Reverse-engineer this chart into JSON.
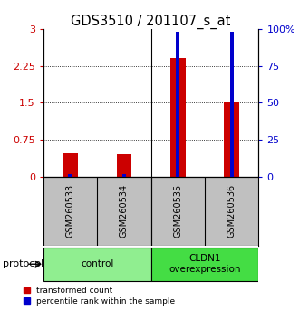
{
  "title": "GDS3510 / 201107_s_at",
  "samples": [
    "GSM260533",
    "GSM260534",
    "GSM260535",
    "GSM260536"
  ],
  "red_values": [
    0.48,
    0.46,
    2.4,
    1.5
  ],
  "blue_values": [
    2.0,
    2.0,
    98.0,
    98.0
  ],
  "ylim_left": [
    0,
    3
  ],
  "ylim_right": [
    0,
    100
  ],
  "yticks_left": [
    0,
    0.75,
    1.5,
    2.25,
    3
  ],
  "yticks_right": [
    0,
    25,
    50,
    75,
    100
  ],
  "ytick_labels_left": [
    "0",
    "0.75",
    "1.5",
    "2.25",
    "3"
  ],
  "ytick_labels_right": [
    "0",
    "25",
    "50",
    "75",
    "100%"
  ],
  "hlines": [
    0.75,
    1.5,
    2.25
  ],
  "groups": [
    {
      "label": "control",
      "color": "#90EE90"
    },
    {
      "label": "CLDN1\noverexpression",
      "color": "#44DD44"
    }
  ],
  "protocol_label": "protocol",
  "legend_red": "transformed count",
  "legend_blue": "percentile rank within the sample",
  "red_color": "#CC0000",
  "blue_color": "#0000CC",
  "plot_bg": "#FFFFFF",
  "sample_box_color": "#C0C0C0",
  "title_fontsize": 10.5,
  "red_bar_width": 0.28,
  "blue_bar_width": 0.07
}
